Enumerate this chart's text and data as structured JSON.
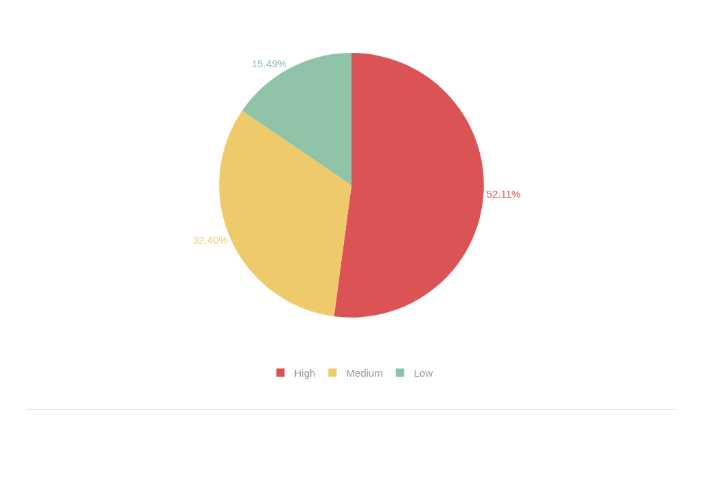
{
  "chart_data": {
    "type": "pie",
    "categories": [
      "High",
      "Medium",
      "Low"
    ],
    "values": [
      52.11,
      32.4,
      15.49
    ],
    "value_labels": [
      "52.11%",
      "32.40%",
      "15.49%"
    ],
    "colors": [
      "#dc5355",
      "#efca6a",
      "#90c4a8"
    ],
    "legend": "bottom"
  }
}
